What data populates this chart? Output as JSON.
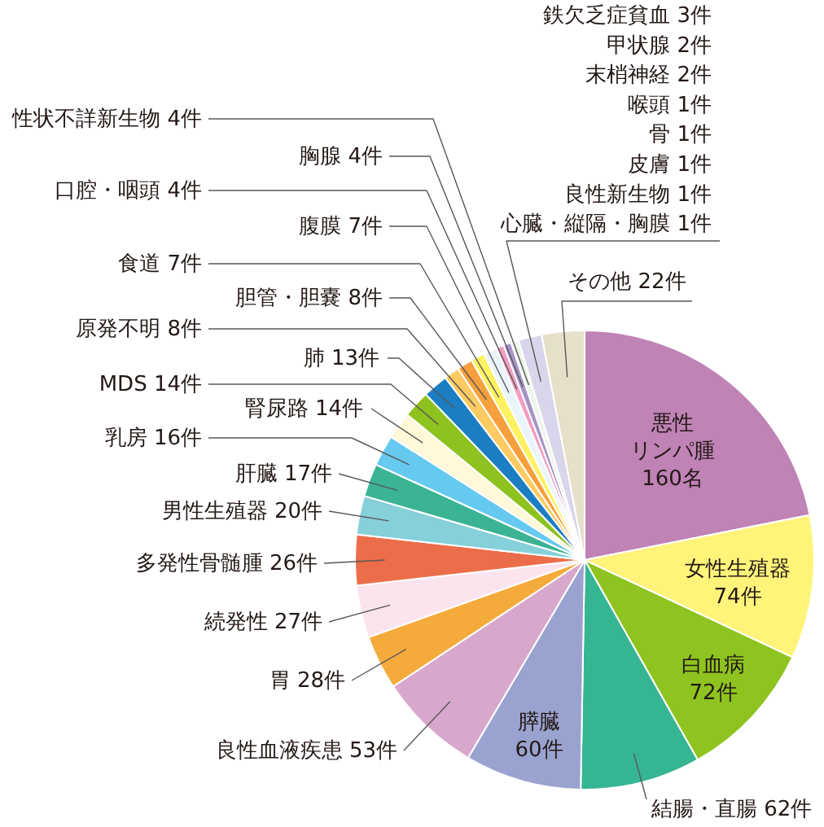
{
  "chart_data": {
    "type": "pie",
    "categories": [
      "悪性リンパ腫",
      "女性生殖器",
      "白血病",
      "結腸・直腸",
      "膵臓",
      "良性血液疾患",
      "胃",
      "続発性",
      "多発性骨髄腫",
      "男性生殖器",
      "肝臓",
      "乳房",
      "腎尿路",
      "MDS",
      "肺",
      "原発不明",
      "胆管・胆嚢",
      "食道",
      "腹膜",
      "口腔・咽頭",
      "胸腺",
      "性状不詳新生物",
      "鉄欠乏症貧血 3件甲状腺 2件末梢神経 2件喉頭 1件骨 1件皮膚 1件良性新生物 1件心臓・縦隔・胸膜 1件",
      "その他"
    ],
    "values": [
      160,
      74,
      72,
      62,
      60,
      53,
      28,
      27,
      26,
      20,
      17,
      16,
      14,
      14,
      13,
      8,
      8,
      7,
      7,
      4,
      4,
      4,
      12,
      22
    ],
    "value_labels": [
      "160名",
      "74件",
      "72件",
      "62件",
      "60件",
      "53件",
      "28件",
      "27件",
      "26件",
      "20件",
      "17件",
      "16件",
      "14件",
      "14件",
      "13件",
      "8件",
      "8件",
      "7件",
      "7件",
      "4件",
      "4件",
      "4件",
      null,
      "22件"
    ],
    "colors": [
      "#bf83b6",
      "#fff47a",
      "#8fc31f",
      "#36b593",
      "#9aa2cf",
      "#d7a8cc",
      "#f5ab3c",
      "#fce4ee",
      "#ec6d4a",
      "#86d0da",
      "#3bb495",
      "#66c9f0",
      "#fff9d9",
      "#8dc21f",
      "#1b7ec2",
      "#fdcb62",
      "#f5a03c",
      "#fff262",
      "#eaf4fb",
      "#f29ec2",
      "#a793c6",
      "#edf5ea",
      "#d9d5ea",
      "#e6dfc9"
    ]
  }
}
